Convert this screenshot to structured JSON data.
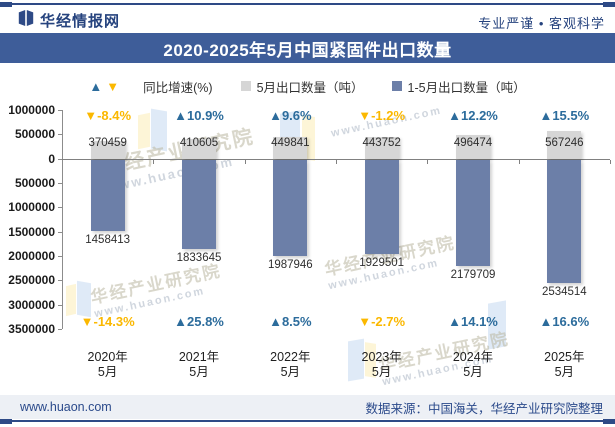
{
  "header": {
    "brand": "华经情报网",
    "tagline": "专业严谨 • 客观科学"
  },
  "title": "2020-2025年5月中国紧固件出口数量",
  "legend": [
    {
      "label": "同比增速(%)",
      "marker": "up-down-triangles"
    },
    {
      "label": "5月出口数量（吨）",
      "marker": "square-gray"
    },
    {
      "label": "1-5月出口数量（吨）",
      "marker": "square-blue"
    }
  ],
  "watermark": {
    "org": "华经产业研究院",
    "url": "www.huaon.com"
  },
  "footer": {
    "site": "www.huaon.com",
    "source": "数据来源：中国海关，华经产业研究院整理"
  },
  "colors": {
    "accent_blue": "#3E5D99",
    "navy_text": "#26437E",
    "bar_gray": "#D6D6D6",
    "bar_blue": "#6C7FA8",
    "pct_up_blue": "#2C6C9C",
    "pct_down_yellow": "#FBB800",
    "axis_line": "#8C8C8C",
    "zero_line": "#808080",
    "footer_bg": "#EDF0F5"
  },
  "chart_data": {
    "type": "bar",
    "title": "2020-2025年5月中国紧固件出口数量",
    "categories": [
      "2020年 5月",
      "2021年 5月",
      "2022年 5月",
      "2023年 5月",
      "2024年 5月",
      "2025年 5月"
    ],
    "x_tick_lines": [
      [
        "2020年",
        "5月"
      ],
      [
        "2021年",
        "5月"
      ],
      [
        "2022年",
        "5月"
      ],
      [
        "2023年",
        "5月"
      ],
      [
        "2024年",
        "5月"
      ],
      [
        "2025年",
        "5月"
      ]
    ],
    "series": [
      {
        "name": "5月出口数量（吨）",
        "render": "column-up",
        "color_key": "bar_gray",
        "values": [
          370459,
          410605,
          449841,
          443752,
          496474,
          567246
        ]
      },
      {
        "name": "1-5月出口数量（吨）",
        "render": "column-down-abs",
        "color_key": "bar_blue",
        "values": [
          1458413,
          1833645,
          1987946,
          1929501,
          2179709,
          2534514
        ]
      },
      {
        "name": "同比增速(%)－5月",
        "render": "pct-top",
        "values": [
          -8.4,
          10.9,
          9.6,
          -1.2,
          12.2,
          15.5
        ]
      },
      {
        "name": "同比增速(%)－1-5月",
        "render": "pct-bottom",
        "values": [
          -14.3,
          25.8,
          8.5,
          -2.7,
          14.1,
          16.6
        ]
      }
    ],
    "y_axis": {
      "ylim": [
        1000000,
        -3500000
      ],
      "tick_values": [
        1000000,
        500000,
        0,
        -500000,
        -1000000,
        -1500000,
        -2000000,
        -2500000,
        -3000000,
        -3500000
      ],
      "tick_labels": [
        "1000000",
        "500000",
        "0",
        "500000",
        "1000000",
        "1500000",
        "2000000",
        "2500000",
        "3000000",
        "3500000"
      ],
      "note": "lower series plotted downward, labelled with absolute values"
    },
    "grid": false,
    "legend_position": "top"
  }
}
